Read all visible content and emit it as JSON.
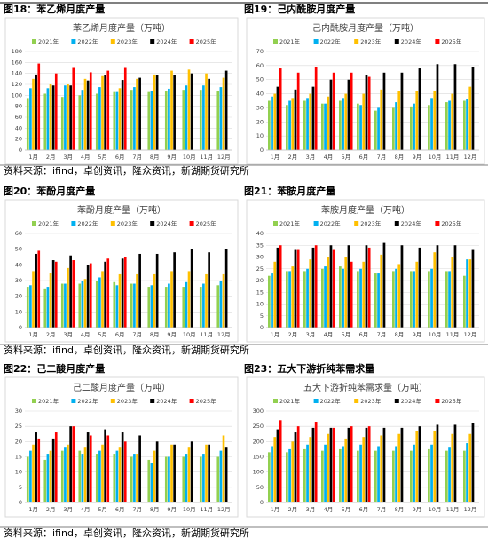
{
  "captions": [
    "图18：苯乙烯月度产量",
    "图19：己内酰胺月度产量",
    "图20：苯酚月度产量",
    "图21：苯胺月度产量",
    "图22：己二酸月度产量",
    "图23：五大下游折纯苯需求量"
  ],
  "sources": [
    "资料来源：ifind，卓创资讯，隆众资讯，新湖期货研究所",
    "资料来源：ifind，卓创资讯，隆众资讯，新湖期货研究所",
    "资料来源：ifind，卓创资讯，隆众资讯，新湖期货研究所"
  ],
  "chart_data": [
    {
      "type": "bar",
      "title": "苯乙烯月度产量（万吨）",
      "categories": [
        "1月",
        "2月",
        "3月",
        "4月",
        "5月",
        "6月",
        "7月",
        "8月",
        "9月",
        "10月",
        "11月",
        "12月"
      ],
      "ylim": [
        0,
        180
      ],
      "yticks": [
        0,
        20,
        40,
        60,
        80,
        100,
        120,
        140,
        160,
        180
      ],
      "grid": true,
      "series": [
        {
          "name": "2021年",
          "color": "#92d050",
          "values": [
            95,
            103,
            97,
            100,
            103,
            106,
            110,
            106,
            107,
            110,
            110,
            108
          ]
        },
        {
          "name": "2022年",
          "color": "#00b0f0",
          "values": [
            113,
            113,
            118,
            110,
            115,
            106,
            115,
            108,
            112,
            118,
            118,
            115
          ]
        },
        {
          "name": "2023年",
          "color": "#ffc000",
          "values": [
            130,
            120,
            120,
            130,
            135,
            113,
            130,
            138,
            145,
            147,
            140,
            132
          ]
        },
        {
          "name": "2024年",
          "color": "#000000",
          "values": [
            138,
            118,
            118,
            127,
            137,
            128,
            132,
            137,
            137,
            140,
            130,
            145
          ]
        },
        {
          "name": "2025年",
          "color": "#ff0000",
          "values": [
            158,
            140,
            150,
            142,
            145,
            150,
            null,
            null,
            null,
            null,
            null,
            null
          ]
        }
      ]
    },
    {
      "type": "bar",
      "title": "己内酰胺月度产量（万吨）",
      "categories": [
        "1月",
        "2月",
        "3月",
        "4月",
        "5月",
        "6月",
        "7月",
        "8月",
        "9月",
        "10月",
        "11月",
        "12月"
      ],
      "ylim": [
        0,
        70
      ],
      "yticks": [
        0,
        10,
        20,
        30,
        40,
        50,
        60,
        70
      ],
      "grid": true,
      "series": [
        {
          "name": "2021年",
          "color": "#92d050",
          "values": [
            35,
            32,
            35,
            33,
            35,
            33,
            28,
            30,
            31,
            32,
            34,
            35
          ]
        },
        {
          "name": "2022年",
          "color": "#00b0f0",
          "values": [
            38,
            35,
            37,
            33,
            37,
            32,
            30,
            34,
            33,
            37,
            35,
            36
          ]
        },
        {
          "name": "2023年",
          "color": "#ffc000",
          "values": [
            40,
            37,
            40,
            38,
            40,
            40,
            43,
            42,
            42,
            42,
            40,
            45
          ]
        },
        {
          "name": "2024年",
          "color": "#000000",
          "values": [
            45,
            43,
            45,
            50,
            50,
            53,
            55,
            55,
            58,
            61,
            61,
            59
          ]
        },
        {
          "name": "2025年",
          "color": "#ff0000",
          "values": [
            58,
            55,
            59,
            55,
            55,
            52,
            null,
            null,
            null,
            null,
            null,
            null
          ]
        }
      ]
    },
    {
      "type": "bar",
      "title": "苯酚月度产量（万吨）",
      "categories": [
        "1月",
        "2月",
        "3月",
        "4月",
        "5月",
        "6月",
        "7月",
        "8月",
        "9月",
        "10月",
        "11月",
        "12月"
      ],
      "ylim": [
        0,
        60
      ],
      "yticks": [
        0,
        10,
        20,
        30,
        40,
        50,
        60
      ],
      "grid": true,
      "series": [
        {
          "name": "2021年",
          "color": "#92d050",
          "values": [
            26,
            25,
            28,
            28,
            30,
            29,
            28,
            26,
            26,
            26,
            26,
            27
          ]
        },
        {
          "name": "2022年",
          "color": "#00b0f0",
          "values": [
            27,
            26,
            28,
            30,
            32,
            27,
            28,
            27,
            28,
            29,
            28,
            30
          ]
        },
        {
          "name": "2023年",
          "color": "#ffc000",
          "values": [
            36,
            35,
            38,
            31,
            36,
            34,
            34,
            34,
            36,
            36,
            34,
            34
          ]
        },
        {
          "name": "2024年",
          "color": "#000000",
          "values": [
            47,
            43,
            46,
            40,
            42,
            44,
            47,
            47,
            48,
            50,
            48,
            50
          ]
        },
        {
          "name": "2025年",
          "color": "#ff0000",
          "values": [
            49,
            42,
            43,
            41,
            44,
            45,
            null,
            null,
            null,
            null,
            null,
            null
          ]
        }
      ]
    },
    {
      "type": "bar",
      "title": "苯胺月度产量（万吨）",
      "categories": [
        "1月",
        "2月",
        "3月",
        "4月",
        "5月",
        "6月",
        "7月",
        "8月",
        "9月",
        "10月",
        "11月",
        "12月"
      ],
      "ylim": [
        0,
        40
      ],
      "yticks": [
        0,
        5,
        10,
        15,
        20,
        25,
        30,
        35,
        40
      ],
      "grid": true,
      "series": [
        {
          "name": "2021年",
          "color": "#92d050",
          "values": [
            22,
            24,
            24,
            25,
            26,
            24,
            23,
            24,
            24,
            24,
            24,
            22
          ]
        },
        {
          "name": "2022年",
          "color": "#00b0f0",
          "values": [
            23,
            24,
            25,
            26,
            25,
            25,
            23,
            25,
            24,
            25,
            24,
            29
          ]
        },
        {
          "name": "2023年",
          "color": "#ffc000",
          "values": [
            28,
            26,
            29,
            30,
            30,
            28,
            31,
            27,
            28,
            32,
            30,
            29
          ]
        },
        {
          "name": "2024年",
          "color": "#000000",
          "values": [
            34,
            33,
            34,
            35,
            35,
            35,
            36,
            35,
            34,
            35,
            35,
            33
          ]
        },
        {
          "name": "2025年",
          "color": "#ff0000",
          "values": [
            35,
            33,
            35,
            33,
            28,
            34,
            null,
            null,
            null,
            null,
            null,
            null
          ]
        }
      ]
    },
    {
      "type": "bar",
      "title": "己二酸月度产量（万吨）",
      "categories": [
        "1月",
        "2月",
        "3月",
        "4月",
        "5月",
        "6月",
        "7月",
        "8月",
        "9月",
        "10月",
        "11月",
        "12月"
      ],
      "ylim": [
        0,
        30
      ],
      "yticks": [
        0,
        5,
        10,
        15,
        20,
        25,
        30
      ],
      "grid": true,
      "series": [
        {
          "name": "2021年",
          "color": "#92d050",
          "values": [
            15,
            14,
            17,
            17,
            16,
            16,
            15,
            14,
            15,
            15,
            15,
            15
          ]
        },
        {
          "name": "2022年",
          "color": "#00b0f0",
          "values": [
            17,
            16,
            18,
            16,
            17,
            17,
            16,
            13,
            15,
            16,
            16,
            17
          ]
        },
        {
          "name": "2023年",
          "color": "#ffc000",
          "values": [
            19,
            17,
            19,
            18,
            19,
            18,
            16,
            17,
            19,
            18,
            19,
            22
          ]
        },
        {
          "name": "2024年",
          "color": "#000000",
          "values": [
            23,
            21,
            25,
            23,
            24,
            23,
            22,
            20,
            19,
            20,
            19,
            18
          ]
        },
        {
          "name": "2025年",
          "color": "#ff0000",
          "values": [
            21,
            23,
            25,
            22,
            22,
            20,
            null,
            null,
            null,
            null,
            null,
            null
          ]
        }
      ]
    },
    {
      "type": "bar",
      "title": "五大下游折纯苯需求量（万吨）",
      "categories": [
        "1月",
        "2月",
        "3月",
        "4月",
        "5月",
        "6月",
        "7月",
        "8月",
        "9月",
        "10月",
        "11月",
        "12月"
      ],
      "ylim": [
        0,
        300
      ],
      "yticks": [
        0,
        50,
        100,
        150,
        200,
        250,
        300
      ],
      "grid": true,
      "series": [
        {
          "name": "2021年",
          "color": "#92d050",
          "values": [
            165,
            165,
            175,
            170,
            175,
            170,
            170,
            170,
            170,
            175,
            170,
            170
          ]
        },
        {
          "name": "2022年",
          "color": "#00b0f0",
          "values": [
            185,
            175,
            190,
            190,
            185,
            190,
            185,
            185,
            190,
            190,
            180,
            195
          ]
        },
        {
          "name": "2023年",
          "color": "#ffc000",
          "values": [
            215,
            200,
            215,
            225,
            210,
            215,
            220,
            225,
            235,
            235,
            225,
            225
          ]
        },
        {
          "name": "2024年",
          "color": "#000000",
          "values": [
            240,
            230,
            245,
            245,
            245,
            245,
            245,
            245,
            250,
            255,
            255,
            260
          ]
        },
        {
          "name": "2025年",
          "color": "#ff0000",
          "values": [
            270,
            250,
            265,
            245,
            250,
            250,
            null,
            null,
            null,
            null,
            null,
            null
          ]
        }
      ]
    }
  ]
}
